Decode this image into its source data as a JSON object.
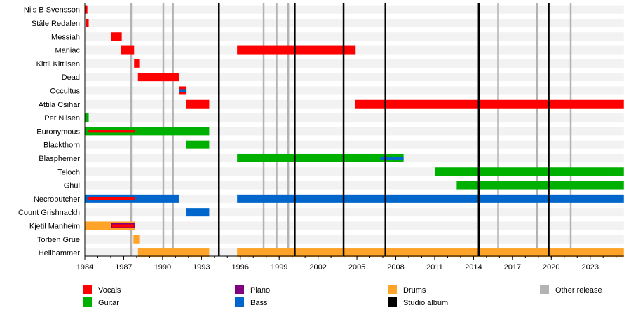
{
  "chart_data": {
    "type": "timeline",
    "title": "",
    "xlim": [
      1984,
      2025.6
    ],
    "x_ticks": [
      1984,
      1987,
      1990,
      1993,
      1996,
      1999,
      2002,
      2005,
      2008,
      2011,
      2014,
      2017,
      2020,
      2023
    ],
    "colors": {
      "Vocals": "#ff0000",
      "Guitar": "#00b000",
      "Piano": "#800080",
      "Bass": "#0066cc",
      "Drums": "#ffa329",
      "Studio album": "#000000",
      "Other release": "#b3b3b3"
    },
    "members": [
      {
        "name": "Nils B Svensson",
        "bars": [
          {
            "role": "Vocals",
            "start": 1984.0,
            "end": 1984.2
          }
        ]
      },
      {
        "name": "Ståle Redalen",
        "bars": [
          {
            "role": "Vocals",
            "start": 1984.1,
            "end": 1984.3
          }
        ]
      },
      {
        "name": "Messiah",
        "bars": [
          {
            "role": "Vocals",
            "start": 1986.05,
            "end": 1986.85
          }
        ]
      },
      {
        "name": "Maniac",
        "bars": [
          {
            "role": "Vocals",
            "start": 1986.8,
            "end": 1987.8
          },
          {
            "role": "Vocals",
            "start": 1995.75,
            "end": 2004.9
          }
        ]
      },
      {
        "name": "Kittil Kittilsen",
        "bars": [
          {
            "role": "Vocals",
            "start": 1987.8,
            "end": 1988.2
          }
        ]
      },
      {
        "name": "Dead",
        "bars": [
          {
            "role": "Vocals",
            "start": 1988.1,
            "end": 1991.25
          }
        ]
      },
      {
        "name": "Occultus",
        "bars": [
          {
            "role": "Vocals",
            "start": 1991.3,
            "end": 1991.85
          }
        ],
        "stripes": [
          {
            "role": "Bass",
            "start": 1991.3,
            "end": 1991.85
          }
        ]
      },
      {
        "name": "Attila Csihar",
        "bars": [
          {
            "role": "Vocals",
            "start": 1991.8,
            "end": 1993.6
          },
          {
            "role": "Vocals",
            "start": 2004.85,
            "end": 2025.6
          }
        ]
      },
      {
        "name": "Per Nilsen",
        "bars": [
          {
            "role": "Guitar",
            "start": 1984.0,
            "end": 1984.3
          }
        ]
      },
      {
        "name": "Euronymous",
        "bars": [
          {
            "role": "Guitar",
            "start": 1984.0,
            "end": 1993.6
          }
        ],
        "stripes": [
          {
            "role": "Vocals",
            "start": 1984.25,
            "end": 1987.85
          }
        ]
      },
      {
        "name": "Blackthorn",
        "bars": [
          {
            "role": "Guitar",
            "start": 1991.8,
            "end": 1993.6
          }
        ]
      },
      {
        "name": "Blasphemer",
        "bars": [
          {
            "role": "Guitar",
            "start": 1995.75,
            "end": 2008.6
          }
        ],
        "stripes": [
          {
            "role": "Bass",
            "start": 2006.8,
            "end": 2008.6
          }
        ]
      },
      {
        "name": "Teloch",
        "bars": [
          {
            "role": "Guitar",
            "start": 2011.05,
            "end": 2025.6
          }
        ]
      },
      {
        "name": "Ghul",
        "bars": [
          {
            "role": "Guitar",
            "start": 2012.7,
            "end": 2025.6
          }
        ]
      },
      {
        "name": "Necrobutcher",
        "bars": [
          {
            "role": "Bass",
            "start": 1984.0,
            "end": 1991.25
          },
          {
            "role": "Bass",
            "start": 1995.75,
            "end": 2025.6
          }
        ],
        "stripes": [
          {
            "role": "Vocals",
            "start": 1984.25,
            "end": 1987.85
          }
        ]
      },
      {
        "name": "Count Grishnackh",
        "bars": [
          {
            "role": "Bass",
            "start": 1991.8,
            "end": 1993.6
          }
        ]
      },
      {
        "name": "Kjetil Manheim",
        "bars": [
          {
            "role": "Drums",
            "start": 1984.0,
            "end": 1987.85
          }
        ],
        "stripes": [
          {
            "role": "Piano",
            "start": 1986.05,
            "end": 1987.85,
            "inner": "Vocals"
          }
        ]
      },
      {
        "name": "Torben Grue",
        "bars": [
          {
            "role": "Drums",
            "start": 1987.75,
            "end": 1988.2
          }
        ]
      },
      {
        "name": "Hellhammer",
        "bars": [
          {
            "role": "Drums",
            "start": 1988.1,
            "end": 1993.6
          },
          {
            "role": "Drums",
            "start": 1995.75,
            "end": 2025.6
          }
        ]
      }
    ],
    "studio_albums": [
      1994.35,
      2000.2,
      2003.97,
      2007.2,
      2014.4,
      2019.8
    ],
    "other_releases": [
      1987.57,
      1990.06,
      1990.8,
      1997.8,
      1998.8,
      1999.7,
      2015.9,
      2018.9,
      2021.5
    ],
    "legend": {
      "placement": "bottom",
      "entries": [
        "Vocals",
        "Guitar",
        "Piano",
        "Bass",
        "Drums",
        "Studio album",
        "Other release"
      ]
    }
  }
}
